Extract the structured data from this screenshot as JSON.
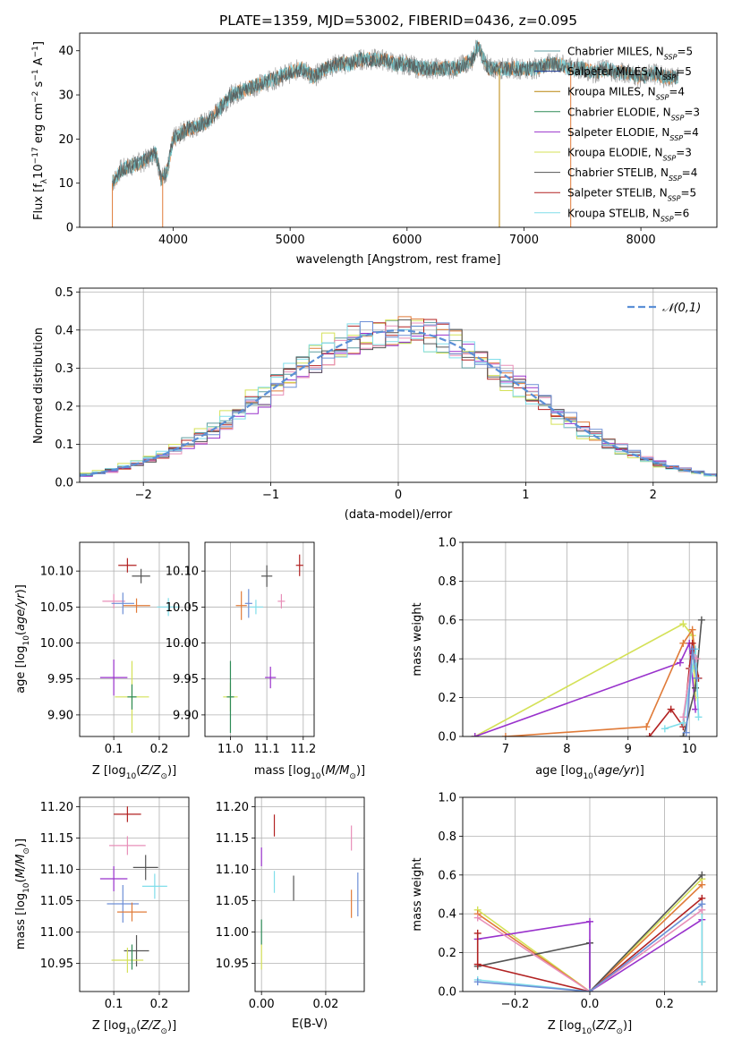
{
  "chart_data": [
    {
      "type": "line",
      "title": "PLATE=1359, MJD=53002, FIBERID=0436, z=0.095",
      "xlabel": "wavelength [Angstrom, rest frame]",
      "ylabel": "Flux [f_λ10^-17 erg cm^-2 s^-1 A^-1]",
      "xlim": [
        3200,
        8650
      ],
      "ylim": [
        0,
        44
      ],
      "xticks": [
        4000,
        5000,
        6000,
        7000,
        8000
      ],
      "yticks": [
        0,
        10,
        20,
        30,
        40
      ],
      "legend_position": "upper right",
      "series": [
        {
          "name": "Chabrier MILES, N_SSP=5",
          "color": "#5f9ea0"
        },
        {
          "name": "Salpeter MILES, N_SSP=5",
          "color": "#1f3a93"
        },
        {
          "name": "Kroupa MILES, N_SSP=4",
          "color": "#b8860b"
        },
        {
          "name": "Chabrier ELODIE, N_SSP=3",
          "color": "#2e8b57"
        },
        {
          "name": "Salpeter ELODIE, N_SSP=4",
          "color": "#9932cc"
        },
        {
          "name": "Kroupa ELODIE, N_SSP=3",
          "color": "#d4e157"
        },
        {
          "name": "Chabrier STELIB, N_SSP=4",
          "color": "#555555"
        },
        {
          "name": "Salpeter STELIB, N_SSP=5",
          "color": "#b22222"
        },
        {
          "name": "Kroupa STELIB, N_SSP=6",
          "color": "#80deea"
        }
      ],
      "data_color": "#999999",
      "model_color": "#e07b39",
      "spectrum_points": [
        [
          3480,
          10
        ],
        [
          3550,
          13
        ],
        [
          3650,
          14
        ],
        [
          3750,
          15
        ],
        [
          3850,
          17
        ],
        [
          3900,
          11
        ],
        [
          3950,
          13
        ],
        [
          4000,
          20
        ],
        [
          4100,
          22
        ],
        [
          4200,
          23
        ],
        [
          4300,
          24
        ],
        [
          4400,
          27
        ],
        [
          4500,
          30
        ],
        [
          4600,
          31
        ],
        [
          4700,
          32
        ],
        [
          4800,
          33
        ],
        [
          4900,
          34
        ],
        [
          5000,
          35
        ],
        [
          5100,
          36
        ],
        [
          5200,
          34
        ],
        [
          5300,
          36
        ],
        [
          5400,
          37
        ],
        [
          5500,
          37
        ],
        [
          5600,
          38
        ],
        [
          5700,
          38
        ],
        [
          5800,
          38
        ],
        [
          5900,
          37
        ],
        [
          6000,
          37
        ],
        [
          6100,
          36
        ],
        [
          6200,
          36
        ],
        [
          6300,
          36
        ],
        [
          6400,
          36
        ],
        [
          6500,
          37
        ],
        [
          6560,
          38
        ],
        [
          6600,
          41
        ],
        [
          6700,
          36
        ],
        [
          6800,
          36
        ],
        [
          6900,
          36
        ],
        [
          7000,
          36
        ],
        [
          7100,
          36
        ],
        [
          7200,
          37
        ],
        [
          7300,
          37
        ],
        [
          7400,
          36
        ],
        [
          7500,
          36
        ],
        [
          7600,
          35
        ],
        [
          7700,
          36
        ],
        [
          7800,
          35
        ],
        [
          7900,
          35
        ],
        [
          8000,
          34
        ],
        [
          8100,
          35
        ],
        [
          8200,
          34
        ],
        [
          8300,
          34
        ]
      ],
      "model_edges": [
        3480,
        7400
      ]
    },
    {
      "type": "bar",
      "xlabel": "(data-model)/error",
      "ylabel": "Normed distribution",
      "xlim": [
        -2.5,
        2.5
      ],
      "ylim": [
        0,
        0.51
      ],
      "xticks": [
        -2,
        -1,
        0,
        1,
        2
      ],
      "yticks": [
        0.0,
        0.1,
        0.2,
        0.3,
        0.4,
        0.5
      ],
      "legend": "𝒩(0,1)",
      "legend_position": "upper right",
      "normal_curve": {
        "mean": 0,
        "sigma": 1,
        "color": "#5b8fd6"
      },
      "bin_width": 0.1,
      "histograms": [
        {
          "color": "#e07b39",
          "shift": 0.02
        },
        {
          "color": "#5f9ea0",
          "shift": -0.03
        },
        {
          "color": "#9932cc",
          "shift": 0.05
        },
        {
          "color": "#d4e157",
          "shift": -0.06
        },
        {
          "color": "#b22222",
          "shift": 0.0
        },
        {
          "color": "#e88fb8",
          "shift": 0.04
        },
        {
          "color": "#80deea",
          "shift": -0.02
        },
        {
          "color": "#555555",
          "shift": 0.01
        },
        {
          "color": "#6d8fd6",
          "shift": 0.03
        }
      ]
    },
    {
      "type": "scatter",
      "xlabel": "Z [log10(Z/Z⊙)]",
      "ylabel": "age [log10(age/yr)]",
      "xlim": [
        0.025,
        0.265
      ],
      "ylim": [
        9.87,
        10.14
      ],
      "xticks": [
        0.1,
        0.2
      ],
      "yticks": [
        9.9,
        9.95,
        10.0,
        10.05,
        10.1
      ],
      "crosses": [
        {
          "x": 0.13,
          "y": 10.108,
          "dx": 0.04,
          "dy": 0.02,
          "color": "#b22222"
        },
        {
          "x": 0.16,
          "y": 10.093,
          "dx": 0.04,
          "dy": 0.02,
          "color": "#555555"
        },
        {
          "x": 0.1,
          "y": 10.058,
          "dx": 0.05,
          "dy": 0.02,
          "color": "#e88fb8"
        },
        {
          "x": 0.15,
          "y": 10.052,
          "dx": 0.06,
          "dy": 0.02,
          "color": "#e07b39"
        },
        {
          "x": 0.22,
          "y": 10.05,
          "dx": 0.05,
          "dy": 0.025,
          "color": "#80deea"
        },
        {
          "x": 0.12,
          "y": 10.055,
          "dx": 0.05,
          "dy": 0.03,
          "color": "#6d8fd6"
        },
        {
          "x": 0.1,
          "y": 9.952,
          "dx": 0.06,
          "dy": 0.05,
          "color": "#9932cc"
        },
        {
          "x": 0.14,
          "y": 9.925,
          "dx": 0.075,
          "dy": 0.1,
          "color": "#d4e157"
        },
        {
          "x": 0.14,
          "y": 9.925,
          "dx": 0.02,
          "dy": 0.035,
          "color": "#2e8b57"
        }
      ]
    },
    {
      "type": "scatter",
      "xlabel": "mass [log10(M/M⊙)]",
      "xlim": [
        10.93,
        11.23
      ],
      "ylim": [
        9.87,
        10.14
      ],
      "xticks": [
        11.0,
        11.1,
        11.2
      ],
      "yticks": [
        9.9,
        9.95,
        10.0,
        10.05,
        10.1
      ],
      "crosses": [
        {
          "x": 11.19,
          "y": 10.108,
          "dx": 0.02,
          "dy": 0.03,
          "color": "#b22222"
        },
        {
          "x": 11.1,
          "y": 10.093,
          "dx": 0.03,
          "dy": 0.03,
          "color": "#555555"
        },
        {
          "x": 11.14,
          "y": 10.058,
          "dx": 0.02,
          "dy": 0.02,
          "color": "#e88fb8"
        },
        {
          "x": 11.03,
          "y": 10.052,
          "dx": 0.03,
          "dy": 0.04,
          "color": "#e07b39"
        },
        {
          "x": 11.07,
          "y": 10.05,
          "dx": 0.04,
          "dy": 0.02,
          "color": "#80deea"
        },
        {
          "x": 11.05,
          "y": 10.055,
          "dx": 0.02,
          "dy": 0.04,
          "color": "#6d8fd6"
        },
        {
          "x": 11.11,
          "y": 9.952,
          "dx": 0.03,
          "dy": 0.03,
          "color": "#9932cc"
        },
        {
          "x": 11.0,
          "y": 9.925,
          "dx": 0.04,
          "dy": 0.04,
          "color": "#d4e157"
        },
        {
          "x": 11.0,
          "y": 9.925,
          "dx": 0.02,
          "dy": 0.1,
          "color": "#2e8b57"
        }
      ]
    },
    {
      "type": "line",
      "xlabel": "age [log10(age/yr)]",
      "ylabel": "mass weight",
      "xlim": [
        6.3,
        10.45
      ],
      "ylim": [
        0,
        1.0
      ],
      "xticks": [
        7,
        8,
        9,
        10
      ],
      "yticks": [
        0.0,
        0.2,
        0.4,
        0.6,
        0.8,
        1.0
      ],
      "series": [
        {
          "color": "#d4e157",
          "points": [
            [
              6.5,
              0.0
            ],
            [
              9.9,
              0.58
            ],
            [
              10.05,
              0.52
            ],
            [
              10.1,
              0.2
            ]
          ]
        },
        {
          "color": "#9932cc",
          "points": [
            [
              6.5,
              0.0
            ],
            [
              9.85,
              0.38
            ],
            [
              10.0,
              0.48
            ],
            [
              10.1,
              0.14
            ]
          ]
        },
        {
          "color": "#e07b39",
          "points": [
            [
              7.0,
              0.0
            ],
            [
              9.3,
              0.05
            ],
            [
              9.9,
              0.48
            ],
            [
              10.05,
              0.55
            ],
            [
              10.1,
              0.4
            ]
          ]
        },
        {
          "color": "#b22222",
          "points": [
            [
              9.35,
              0.0
            ],
            [
              9.7,
              0.14
            ],
            [
              9.9,
              0.05
            ],
            [
              10.0,
              0.35
            ],
            [
              10.05,
              0.48
            ],
            [
              10.15,
              0.3
            ]
          ]
        },
        {
          "color": "#555555",
          "points": [
            [
              9.9,
              0.0
            ],
            [
              10.1,
              0.25
            ],
            [
              10.2,
              0.6
            ]
          ]
        },
        {
          "color": "#80deea",
          "points": [
            [
              9.6,
              0.04
            ],
            [
              9.9,
              0.07
            ],
            [
              10.05,
              0.35
            ],
            [
              10.1,
              0.45
            ],
            [
              10.15,
              0.1
            ]
          ]
        },
        {
          "color": "#e88fb8",
          "points": [
            [
              9.9,
              0.1
            ],
            [
              10.05,
              0.42
            ],
            [
              10.12,
              0.4
            ]
          ]
        },
        {
          "color": "#6d8fd6",
          "points": [
            [
              9.95,
              0.02
            ],
            [
              10.05,
              0.45
            ],
            [
              10.12,
              0.3
            ]
          ]
        }
      ]
    },
    {
      "type": "scatter",
      "xlabel": "Z [log10(Z/Z⊙)]",
      "ylabel": "mass [log10(M/M⊙)]",
      "xlim": [
        0.025,
        0.265
      ],
      "ylim": [
        10.905,
        11.215
      ],
      "xticks": [
        0.1,
        0.2
      ],
      "yticks": [
        10.95,
        11.0,
        11.05,
        11.1,
        11.15,
        11.2
      ],
      "crosses": [
        {
          "x": 0.13,
          "y": 11.188,
          "dx": 0.06,
          "dy": 0.025,
          "color": "#b22222"
        },
        {
          "x": 0.13,
          "y": 11.138,
          "dx": 0.08,
          "dy": 0.03,
          "color": "#e88fb8"
        },
        {
          "x": 0.17,
          "y": 11.103,
          "dx": 0.055,
          "dy": 0.04,
          "color": "#555555"
        },
        {
          "x": 0.1,
          "y": 11.085,
          "dx": 0.06,
          "dy": 0.04,
          "color": "#9932cc"
        },
        {
          "x": 0.19,
          "y": 11.073,
          "dx": 0.055,
          "dy": 0.04,
          "color": "#80deea"
        },
        {
          "x": 0.12,
          "y": 11.045,
          "dx": 0.07,
          "dy": 0.06,
          "color": "#6d8fd6"
        },
        {
          "x": 0.14,
          "y": 11.032,
          "dx": 0.065,
          "dy": 0.03,
          "color": "#e07b39"
        },
        {
          "x": 0.15,
          "y": 10.97,
          "dx": 0.055,
          "dy": 0.05,
          "color": "#555555"
        },
        {
          "x": 0.13,
          "y": 10.955,
          "dx": 0.07,
          "dy": 0.04,
          "color": "#d4e157"
        },
        {
          "x": 0.14,
          "y": 10.96,
          "dx": 0.0,
          "dy": 0.04,
          "color": "#2e8b57"
        }
      ]
    },
    {
      "type": "scatter",
      "xlabel": "E(B-V)",
      "xlim": [
        -0.002,
        0.032
      ],
      "ylim": [
        10.905,
        11.215
      ],
      "xticks": [
        0.0,
        0.02
      ],
      "yticks": [
        10.95,
        11.0,
        11.05,
        11.1,
        11.15,
        11.2
      ],
      "crosses": [
        {
          "x": 0.004,
          "y": 11.17,
          "dx": 0.0,
          "dy": 0.035,
          "color": "#b22222"
        },
        {
          "x": 0.0,
          "y": 11.12,
          "dx": 0.0,
          "dy": 0.03,
          "color": "#9932cc"
        },
        {
          "x": 0.028,
          "y": 11.15,
          "dx": 0.0,
          "dy": 0.04,
          "color": "#e88fb8"
        },
        {
          "x": 0.004,
          "y": 11.08,
          "dx": 0.0,
          "dy": 0.035,
          "color": "#80deea"
        },
        {
          "x": 0.01,
          "y": 11.07,
          "dx": 0.0,
          "dy": 0.04,
          "color": "#555555"
        },
        {
          "x": 0.03,
          "y": 11.06,
          "dx": 0.0,
          "dy": 0.07,
          "color": "#6d8fd6"
        },
        {
          "x": 0.028,
          "y": 11.045,
          "dx": 0.0,
          "dy": 0.045,
          "color": "#e07b39"
        },
        {
          "x": 0.0,
          "y": 11.0,
          "dx": 0.0,
          "dy": 0.04,
          "color": "#2e8b57"
        },
        {
          "x": 0.0,
          "y": 10.96,
          "dx": 0.0,
          "dy": 0.04,
          "color": "#d4e157"
        }
      ]
    },
    {
      "type": "line",
      "xlabel": "Z [log10(Z/Z⊙)]",
      "ylabel": "mass weight",
      "xlim": [
        -0.34,
        0.34
      ],
      "ylim": [
        0,
        1.0
      ],
      "xticks": [
        -0.2,
        0.0,
        0.2
      ],
      "yticks": [
        0.0,
        0.2,
        0.4,
        0.6,
        0.8,
        1.0
      ],
      "series": [
        {
          "color": "#d4e157",
          "points": [
            [
              -0.3,
              0.42
            ],
            [
              0.0,
              0.0
            ],
            [
              0.3,
              0.58
            ]
          ]
        },
        {
          "color": "#e07b39",
          "points": [
            [
              -0.3,
              0.4
            ],
            [
              0.0,
              0.0
            ],
            [
              0.3,
              0.55
            ]
          ]
        },
        {
          "color": "#555555",
          "points": [
            [
              -0.3,
              0.13
            ],
            [
              0.0,
              0.25
            ],
            [
              0.0,
              0.0
            ],
            [
              0.3,
              0.6
            ]
          ]
        },
        {
          "color": "#9932cc",
          "points": [
            [
              -0.3,
              0.27
            ],
            [
              0.0,
              0.36
            ],
            [
              0.0,
              0.0
            ],
            [
              0.3,
              0.37
            ]
          ]
        },
        {
          "color": "#b22222",
          "points": [
            [
              -0.3,
              0.3
            ],
            [
              -0.3,
              0.14
            ],
            [
              0.0,
              0.0
            ],
            [
              0.3,
              0.48
            ],
            [
              0.3,
              0.05
            ]
          ]
        },
        {
          "color": "#80deea",
          "points": [
            [
              -0.3,
              0.06
            ],
            [
              0.0,
              0.0
            ],
            [
              0.3,
              0.45
            ],
            [
              0.3,
              0.05
            ]
          ]
        },
        {
          "color": "#e88fb8",
          "points": [
            [
              -0.3,
              0.38
            ],
            [
              0.0,
              0.0
            ],
            [
              0.3,
              0.42
            ]
          ]
        },
        {
          "color": "#6d8fd6",
          "points": [
            [
              -0.3,
              0.05
            ],
            [
              0.0,
              0.0
            ],
            [
              0.3,
              0.45
            ]
          ]
        }
      ]
    }
  ]
}
